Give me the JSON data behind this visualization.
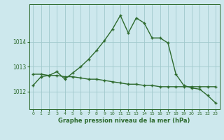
{
  "hours": [
    0,
    1,
    2,
    3,
    4,
    5,
    6,
    7,
    8,
    9,
    10,
    11,
    12,
    13,
    14,
    15,
    16,
    17,
    18,
    19,
    20,
    21,
    22,
    23
  ],
  "pressure_main": [
    1012.25,
    1012.6,
    1012.65,
    1012.8,
    1012.5,
    1012.75,
    1013.0,
    1013.3,
    1013.65,
    1014.05,
    1014.5,
    1015.05,
    1014.35,
    1014.95,
    1014.75,
    1014.15,
    1014.15,
    1013.95,
    1012.7,
    1012.25,
    1012.15,
    1012.1,
    1011.85,
    1011.55
  ],
  "pressure_trend": [
    1012.7,
    1012.7,
    1012.65,
    1012.65,
    1012.6,
    1012.6,
    1012.55,
    1012.5,
    1012.5,
    1012.45,
    1012.4,
    1012.35,
    1012.3,
    1012.3,
    1012.25,
    1012.25,
    1012.2,
    1012.2,
    1012.2,
    1012.2,
    1012.2,
    1012.2,
    1012.2,
    1012.2
  ],
  "ylim": [
    1011.3,
    1015.5
  ],
  "yticks": [
    1012,
    1013,
    1014
  ],
  "xticks": [
    0,
    1,
    2,
    3,
    4,
    5,
    6,
    7,
    8,
    9,
    10,
    11,
    12,
    13,
    14,
    15,
    16,
    17,
    18,
    19,
    20,
    21,
    22,
    23
  ],
  "xlabel": "Graphe pression niveau de la mer (hPa)",
  "line_color": "#2d6a2d",
  "bg_color": "#cde8ed",
  "grid_color": "#a0c8cc",
  "marker": "+",
  "linewidth": 1.0
}
